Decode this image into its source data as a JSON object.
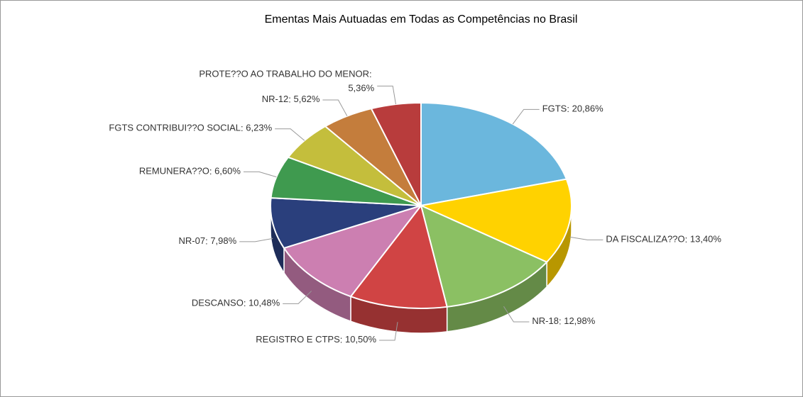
{
  "chart_data": {
    "type": "pie",
    "title": "Ementas Mais Autuadas em Todas as Competências no Brasil",
    "categories": [
      "FGTS",
      "DA FISCALIZA??O",
      "NR-18",
      "REGISTRO E CTPS",
      "DESCANSO",
      "NR-07",
      "REMUNERA??O",
      "FGTS CONTRIBUI??O SOCIAL",
      "NR-12",
      "PROTE??O AO TRABALHO DO MENOR"
    ],
    "values": [
      20.86,
      13.4,
      12.98,
      10.5,
      10.48,
      7.98,
      6.6,
      6.23,
      5.62,
      5.36
    ],
    "value_labels": [
      "20,86%",
      "13,40%",
      "12,98%",
      "10,50%",
      "10,48%",
      "7,98%",
      "6,60%",
      "6,23%",
      "5,62%",
      "5,36%"
    ],
    "colors": [
      "#6bb7dd",
      "#ffd200",
      "#8bc063",
      "#d04444",
      "#cc7fb1",
      "#2a3f7c",
      "#3f9a4f",
      "#c4be3c",
      "#c47d3c",
      "#b83c3c"
    ],
    "three_d": true
  }
}
